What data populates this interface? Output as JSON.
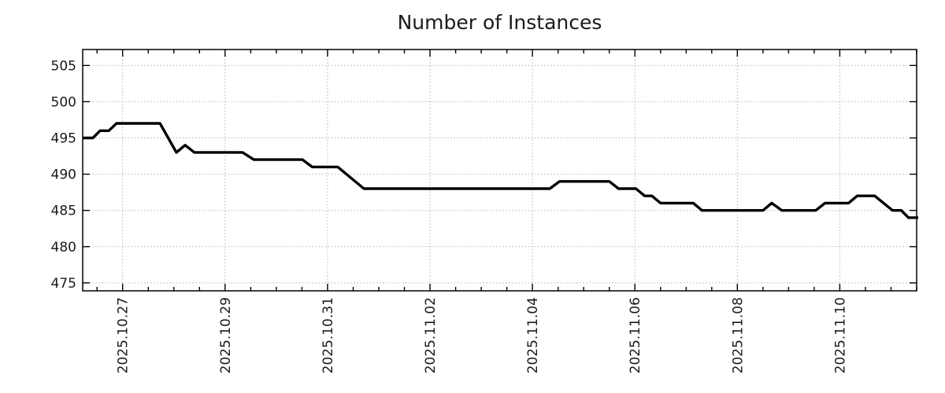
{
  "title": "Number of Instances",
  "colors": {
    "background": "#ffffff",
    "line": "#000000",
    "grid": "#b3b3b3",
    "border": "#000000",
    "text": "#1a1a1a"
  },
  "chart_data": {
    "type": "line",
    "title": "Number of Instances",
    "xlabel": "",
    "ylabel": "",
    "legend": "none",
    "grid": "dotted-at-major-ticks",
    "x_axis": {
      "kind": "time",
      "origin": "2025-10-26 00:00",
      "unit": "days-offset",
      "range": [
        0.22,
        16.5
      ],
      "minor_tick_step": 0.5,
      "major_ticks": [
        {
          "t": 1,
          "label": "2025.10.27"
        },
        {
          "t": 3,
          "label": "2025.10.29"
        },
        {
          "t": 5,
          "label": "2025.10.31"
        },
        {
          "t": 7,
          "label": "2025.11.02"
        },
        {
          "t": 9,
          "label": "2025.11.04"
        },
        {
          "t": 11,
          "label": "2025.11.06"
        },
        {
          "t": 13,
          "label": "2025.11.08"
        },
        {
          "t": 15,
          "label": "2025.11.10"
        }
      ]
    },
    "y_axis": {
      "range": [
        473.9,
        507.2
      ],
      "ticks": [
        475,
        480,
        485,
        490,
        495,
        500,
        505
      ]
    },
    "series": [
      {
        "color": "#000000",
        "stroke_width": 3.4,
        "points": [
          [
            0.22,
            495
          ],
          [
            0.42,
            495
          ],
          [
            0.56,
            496
          ],
          [
            0.73,
            496
          ],
          [
            0.88,
            497
          ],
          [
            1.73,
            497
          ],
          [
            2.05,
            493
          ],
          [
            2.22,
            494
          ],
          [
            2.4,
            493
          ],
          [
            3.34,
            493
          ],
          [
            3.56,
            492
          ],
          [
            4.51,
            492
          ],
          [
            4.7,
            491
          ],
          [
            5.2,
            491
          ],
          [
            5.71,
            488
          ],
          [
            9.34,
            488
          ],
          [
            9.53,
            489
          ],
          [
            10.5,
            489
          ],
          [
            10.68,
            488
          ],
          [
            11.02,
            488
          ],
          [
            11.19,
            487
          ],
          [
            11.33,
            487
          ],
          [
            11.5,
            486
          ],
          [
            12.14,
            486
          ],
          [
            12.31,
            485
          ],
          [
            13.5,
            485
          ],
          [
            13.67,
            486
          ],
          [
            13.87,
            485
          ],
          [
            14.53,
            485
          ],
          [
            14.71,
            486
          ],
          [
            15.17,
            486
          ],
          [
            15.34,
            487
          ],
          [
            15.68,
            487
          ],
          [
            16.03,
            485
          ],
          [
            16.2,
            485
          ],
          [
            16.34,
            484
          ],
          [
            16.53,
            484
          ]
        ]
      }
    ]
  }
}
